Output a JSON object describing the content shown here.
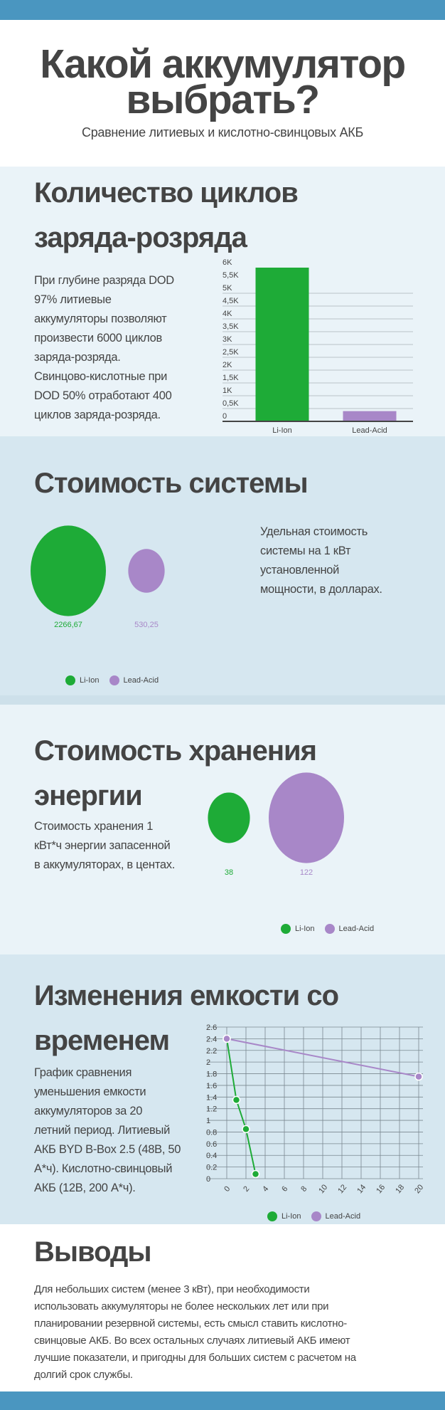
{
  "colors": {
    "li_ion": "#1eab37",
    "lead_acid": "#a887c8",
    "bar": "#4a96c0",
    "text": "#444444"
  },
  "header": {
    "title_line1": "Какой аккумулятор",
    "title_line2": "выбрать?",
    "subtitle": "Сравнение литиевых и кислотно-свинцовых АКБ"
  },
  "cycles": {
    "title_line1": "Количество циклов",
    "title_line2": "заряда-розряда",
    "text": [
      "При глубине разряда DOD",
      "97% литиевые",
      "аккумуляторы позволяют",
      "произвести 6000 циклов",
      "заряда-розряда.",
      "Свинцово-кислотные при",
      "DOD 50% отработают 400",
      "циклов заряда-розряда."
    ]
  },
  "system_cost": {
    "title": "Стоимость системы",
    "text": [
      "Удельная стоимость",
      "системы на 1 кВт",
      "установленной",
      "мощности, в долларах."
    ]
  },
  "storage_cost": {
    "title_line1": "Стоимость хранения",
    "title_line2": "энергии",
    "text": [
      "Стоимость хранения 1",
      "кВт*ч энергии запасенной",
      "в аккумуляторах, в центах."
    ]
  },
  "capacity": {
    "title_line1": "Изменения емкости со",
    "title_line2": "временем",
    "text": [
      "График сравнения",
      "уменьшения емкости",
      "аккумуляторов за 20",
      "летний период. Литиевый",
      "АКБ BYD B-Box 2.5 (48В, 50",
      "А*ч). Кислотно-свинцовый",
      "АКБ (12В, 200 А*ч)."
    ]
  },
  "conclusion": {
    "title": "Выводы",
    "text": [
      "Для небольших систем (менее 3 кВт), при необходимости",
      "использовать аккумуляторы не более нескольких лет или при",
      "планировании резервной системы,  есть смысл ставить кислотно-",
      "свинцовые АКБ. Во всех остальных случаях литиевый АКБ имеют",
      "лучшие показатели, и пригодны для больших систем с расчетом на",
      "долгий срок службы."
    ]
  },
  "chart_data": [
    {
      "type": "bar",
      "categories": [
        "Li-Ion",
        "Lead-Acid"
      ],
      "values": [
        6000,
        400
      ],
      "ylim": [
        0,
        6000
      ],
      "yticks": [
        "0",
        "0,5K",
        "1K",
        "1,5K",
        "2K",
        "2,5K",
        "3K",
        "3,5K",
        "4K",
        "4,5K",
        "5K",
        "5,5K",
        "6K"
      ],
      "grid": true
    },
    {
      "type": "bubble",
      "series": [
        {
          "name": "Li-Ion",
          "value": 2266.67,
          "label": "2266,67"
        },
        {
          "name": "Lead-Acid",
          "value": 530.25,
          "label": "530,25"
        }
      ],
      "legend": "bottom-left"
    },
    {
      "type": "bubble",
      "series": [
        {
          "name": "Li-Ion",
          "value": 38,
          "label": "38"
        },
        {
          "name": "Lead-Acid",
          "value": 122,
          "label": "122"
        }
      ],
      "legend": "bottom-right"
    },
    {
      "type": "line",
      "xlim": [
        0,
        20
      ],
      "ylim": [
        0,
        2.6
      ],
      "grid": true,
      "xticks": [
        "0",
        "2",
        "4",
        "6",
        "8",
        "10",
        "12",
        "14",
        "16",
        "18",
        "20"
      ],
      "yticks": [
        "0",
        "0.2",
        "0.4",
        "0.6",
        "0.8",
        "1",
        "1.2",
        "1.4",
        "1.6",
        "1.8",
        "2",
        "2.2",
        "2.4",
        "2.6"
      ],
      "series": [
        {
          "name": "Li-Ion",
          "x": [
            0,
            1,
            2,
            3
          ],
          "y": [
            2.4,
            1.35,
            0.85,
            0.08
          ]
        },
        {
          "name": "Lead-Acid",
          "x": [
            0,
            20
          ],
          "y": [
            2.4,
            1.75
          ]
        }
      ],
      "legend": "bottom"
    }
  ]
}
